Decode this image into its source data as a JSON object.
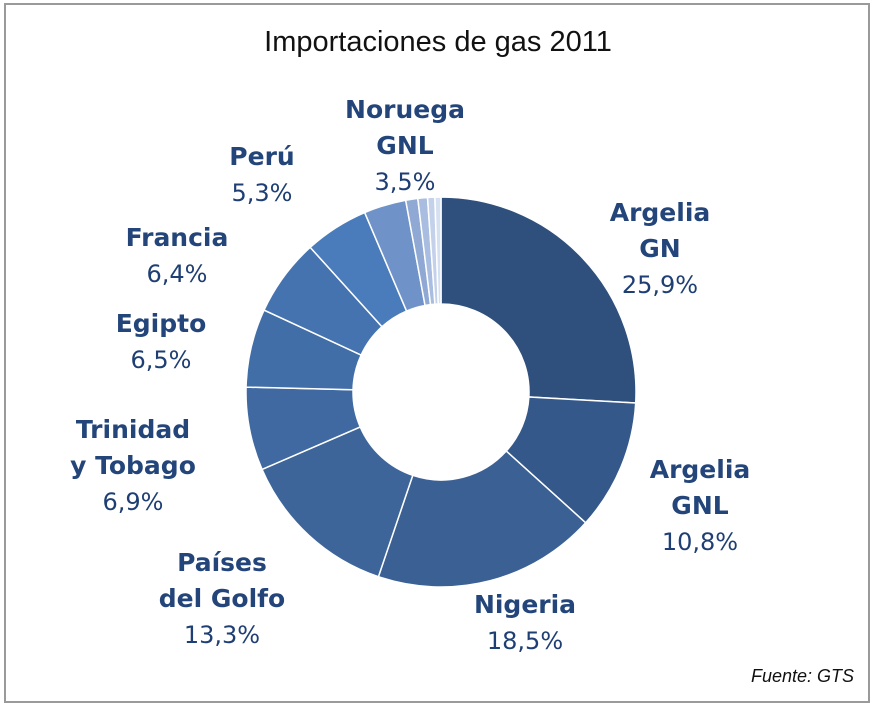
{
  "chart_data": {
    "type": "pie",
    "donut": true,
    "title": "Importaciones de gas 2011",
    "source": "Fuente: GTS",
    "categories": [
      "Argelia\nGN",
      "Argelia\nGNL",
      "Nigeria",
      "Países\ndel Golfo",
      "Trinidad\ny Tobago",
      "Egipto",
      "Francia",
      "Perú",
      "Noruega\nGNL",
      null,
      null,
      null,
      null
    ],
    "values": [
      25.9,
      10.8,
      18.5,
      13.3,
      6.9,
      6.5,
      6.4,
      5.3,
      3.5,
      1.0,
      0.8,
      0.6,
      0.5
    ],
    "value_labels": [
      "25,9%",
      "10,8%",
      "18,5%",
      "13,3%",
      "6,9%",
      "6,5%",
      "6,4%",
      "5,3%",
      "3,5%",
      null,
      null,
      null,
      null
    ],
    "colors": [
      "#2f4f7c",
      "#34588a",
      "#3a6094",
      "#3d6599",
      "#4069a1",
      "#426ea8",
      "#4573b0",
      "#4a7bbb",
      "#6f93c8",
      "#8fa9d4",
      "#a9bde0",
      "#c3d1ea",
      "#d5e0f0"
    ]
  }
}
